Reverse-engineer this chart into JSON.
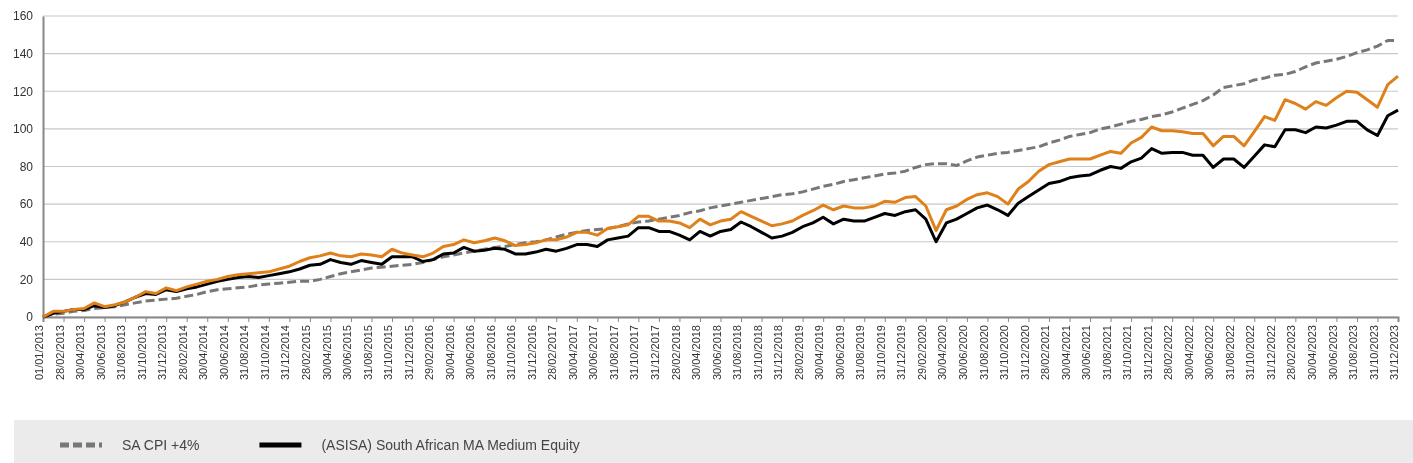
{
  "chart_data": {
    "type": "line",
    "categories": [
      "01/01/2013",
      null,
      "28/02/2013",
      null,
      "30/04/2013",
      null,
      "30/06/2013",
      null,
      "31/08/2013",
      null,
      "31/10/2013",
      null,
      "31/12/2013",
      null,
      "28/02/2014",
      null,
      "30/04/2014",
      null,
      "30/06/2014",
      null,
      "31/08/2014",
      null,
      "31/10/2014",
      null,
      "31/12/2014",
      null,
      "28/02/2015",
      null,
      "30/04/2015",
      null,
      "30/06/2015",
      null,
      "31/08/2015",
      null,
      "31/10/2015",
      null,
      "31/12/2015",
      null,
      "29/02/2016",
      null,
      "30/04/2016",
      null,
      "30/06/2016",
      null,
      "31/08/2016",
      null,
      "31/10/2016",
      null,
      "31/12/2016",
      null,
      "28/02/2017",
      null,
      "30/04/2017",
      null,
      "30/06/2017",
      null,
      "31/08/2017",
      null,
      "31/10/2017",
      null,
      "31/12/2017",
      null,
      "28/02/2018",
      null,
      "30/04/2018",
      null,
      "30/06/2018",
      null,
      "31/08/2018",
      null,
      "31/10/2018",
      null,
      "31/12/2018",
      null,
      "28/02/2019",
      null,
      "30/04/2019",
      null,
      "30/06/2019",
      null,
      "31/08/2019",
      null,
      "31/10/2019",
      null,
      "31/12/2019",
      null,
      "29/02/2020",
      null,
      "30/04/2020",
      null,
      "30/06/2020",
      null,
      "31/08/2020",
      null,
      "31/10/2020",
      null,
      "31/12/2020",
      null,
      "28/02/2021",
      null,
      "30/04/2021",
      null,
      "30/06/2021",
      null,
      "31/08/2021",
      null,
      "31/10/2021",
      null,
      "31/12/2021",
      null,
      "28/02/2022",
      null,
      "30/04/2022",
      null,
      "30/06/2022",
      null,
      "31/08/2022",
      null,
      "31/10/2022",
      null,
      "31/12/2022",
      null,
      "28/02/2023",
      null,
      "30/04/2023",
      null,
      "30/06/2023",
      null,
      "31/08/2023",
      null,
      "31/10/2023",
      null,
      "31/12/2023"
    ],
    "series": [
      {
        "color": "#e0801a",
        "line_style": "solid",
        "values": [
          0,
          3,
          3,
          4,
          4.5,
          7.5,
          5.5,
          6.5,
          8,
          10.5,
          13.5,
          12.5,
          15.5,
          14,
          16,
          17.5,
          19,
          20,
          21.5,
          22.5,
          23,
          23.5,
          24,
          25.5,
          27,
          29.5,
          31.5,
          32.5,
          34,
          32.5,
          32,
          33.5,
          33,
          32,
          36,
          34,
          33,
          32,
          34,
          37.5,
          38.5,
          41,
          39.5,
          40.5,
          42,
          40.5,
          38,
          38.5,
          39.5,
          41,
          41,
          42.5,
          45,
          45,
          43.5,
          47,
          48,
          49,
          53.5,
          53.5,
          51,
          51,
          50,
          47.5,
          52,
          49,
          51,
          52,
          56,
          53.5,
          51,
          48.5,
          49.5,
          51,
          54,
          56.5,
          59.5,
          57,
          59,
          58,
          58,
          59,
          61.5,
          61,
          63.5,
          64,
          59,
          46,
          57,
          59,
          62.5,
          65,
          66,
          64,
          60,
          68,
          72,
          77.5,
          81,
          82.5,
          84,
          84,
          84,
          86,
          88,
          87,
          92.5,
          95.5,
          101,
          99,
          99,
          98.5,
          97.5,
          97.5,
          91,
          96,
          96,
          91,
          98.5,
          106.5,
          104.5,
          115.5,
          113.5,
          110.5,
          114.5,
          112.5,
          116.5,
          120,
          119.5,
          115.5,
          111.5,
          123.5,
          128
        ]
      },
      {
        "name": "SA CPI +4%",
        "color": "#777777",
        "line_style": "dashed",
        "values": [
          0,
          1.5,
          2,
          3,
          3.5,
          4.5,
          5,
          5.5,
          6.5,
          7.5,
          8.5,
          9,
          9.5,
          10,
          11,
          12,
          13.5,
          14.5,
          15,
          15.5,
          16,
          17,
          17.5,
          18,
          18.5,
          19,
          19,
          20,
          21.5,
          23,
          24,
          25,
          26,
          26.5,
          27,
          27.5,
          28,
          29,
          30.5,
          32,
          33,
          34,
          35,
          36,
          37,
          37.5,
          38.5,
          39.5,
          40,
          41,
          42.5,
          44,
          45,
          46,
          46.5,
          47,
          48,
          49.5,
          50.5,
          51,
          52,
          53,
          54,
          55.5,
          56.5,
          58,
          59,
          60,
          61,
          62,
          63,
          64,
          65,
          65.5,
          66.5,
          68,
          69.5,
          70.5,
          72,
          73,
          74,
          75,
          76,
          76.5,
          77.5,
          79.5,
          81,
          81.5,
          81.5,
          80.5,
          83,
          85,
          86,
          87,
          87.5,
          88.5,
          89.5,
          90.5,
          92.5,
          94,
          96,
          97,
          98,
          100,
          101,
          102.5,
          104,
          105,
          106.5,
          107.5,
          109,
          111,
          113,
          115,
          118,
          122,
          123,
          124,
          126,
          127,
          128.5,
          129,
          130.5,
          133,
          135,
          136,
          137,
          138.5,
          140.5,
          142,
          144,
          147,
          147
        ]
      },
      {
        "name": "(ASISA) South African MA Medium Equity",
        "color": "#000000",
        "line_style": "solid",
        "values": [
          0,
          2,
          3,
          4,
          4,
          6,
          5,
          6,
          8,
          10.5,
          12.5,
          12,
          14.5,
          13.5,
          15,
          16,
          17.5,
          19,
          20,
          21,
          21.5,
          21,
          22,
          23,
          24,
          25.5,
          27.5,
          28,
          30.5,
          29,
          28,
          30,
          29,
          28,
          32,
          32,
          32,
          29.5,
          30.5,
          33.5,
          34,
          37,
          35,
          35.5,
          36.5,
          36,
          33.5,
          33.5,
          34.5,
          36,
          35,
          36.5,
          38.5,
          38.5,
          37.5,
          41,
          42,
          43,
          47.5,
          47.5,
          45.5,
          45.5,
          43.5,
          41,
          45.5,
          43,
          45.5,
          46.5,
          50.5,
          48,
          45,
          42,
          43,
          45,
          48,
          50,
          53,
          49.5,
          52,
          51,
          51,
          53,
          55,
          54,
          56,
          57,
          52,
          40,
          50,
          52,
          55,
          58,
          59.5,
          57,
          54,
          60.5,
          64,
          67.5,
          71,
          72,
          74,
          75,
          75.5,
          78,
          80,
          79,
          82.5,
          84.5,
          89.5,
          87,
          87.5,
          87.5,
          86,
          86,
          79.5,
          84,
          84,
          79.5,
          85.5,
          91.5,
          90.5,
          99.5,
          99.5,
          98,
          101,
          100.5,
          102,
          104,
          104,
          99.5,
          96.5,
          107,
          110
        ]
      }
    ],
    "ylim": [
      0,
      160
    ],
    "yticks": [
      0,
      20,
      40,
      60,
      80,
      100,
      120,
      140,
      160
    ],
    "grid": "y",
    "legend": "bottom"
  }
}
